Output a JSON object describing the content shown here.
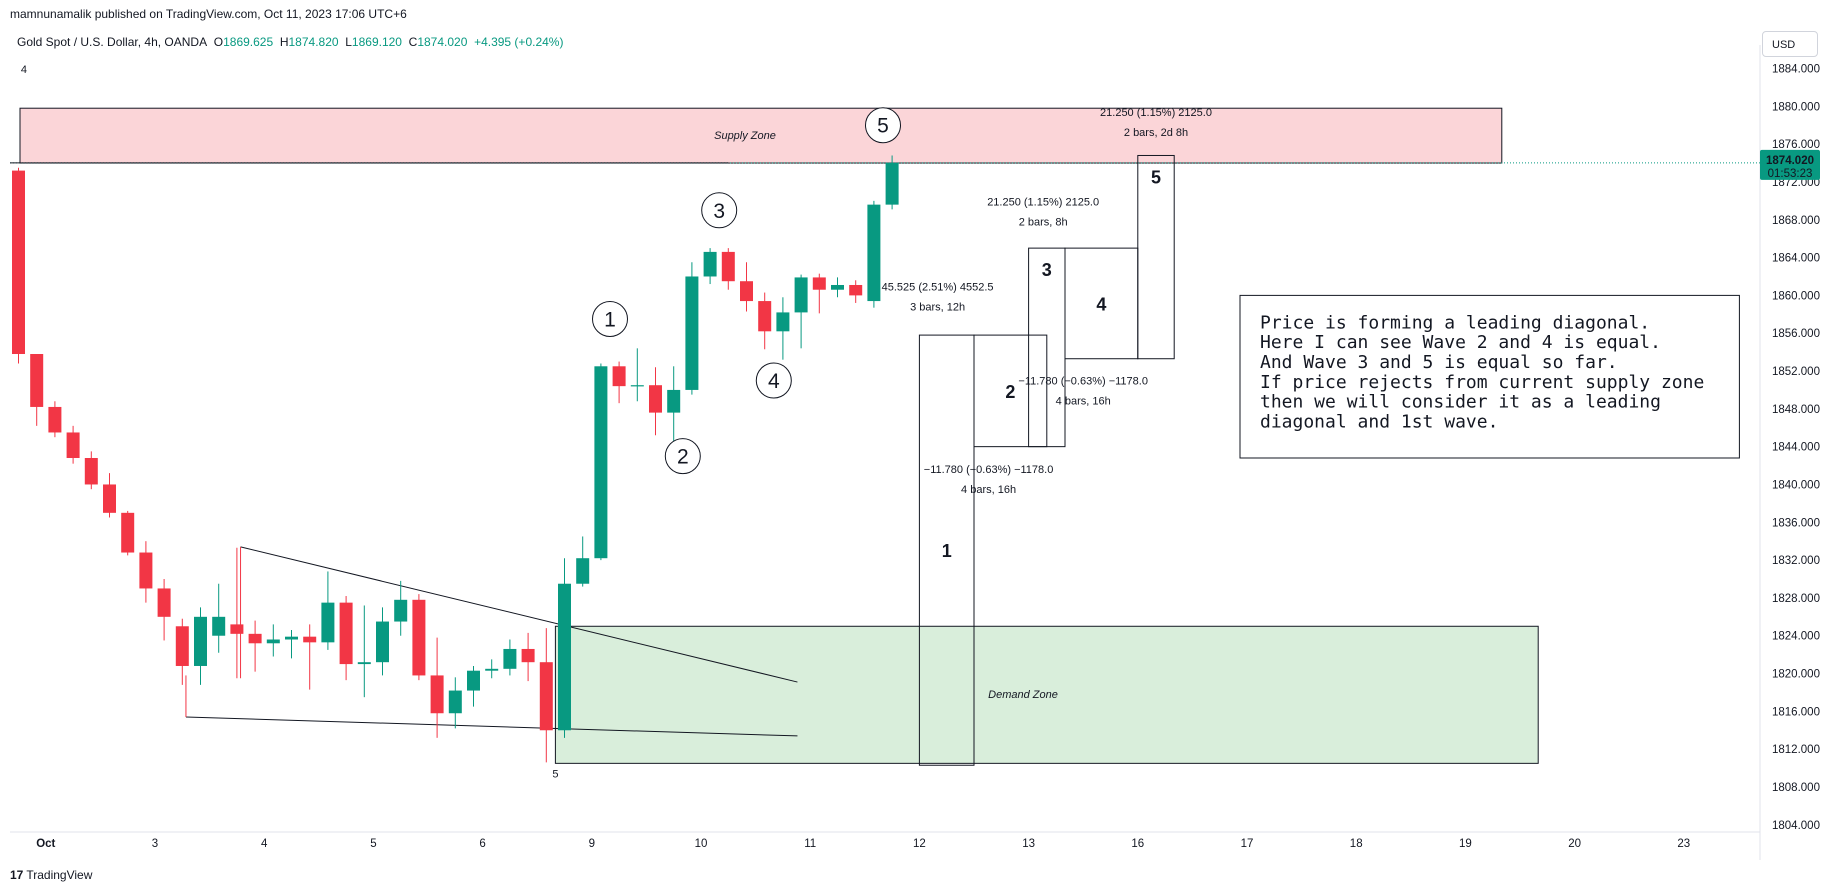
{
  "header": {
    "publisher": "mamnunamalik published on TradingView.com, Oct 11, 2023 17:06 UTC+6",
    "symbol": "Gold Spot / U.S. Dollar, 4h, OANDA",
    "open_label": "O",
    "open": "1869.625",
    "high_label": "H",
    "high": "1874.820",
    "low_label": "L",
    "low": "1869.120",
    "close_label": "C",
    "close": "1874.020",
    "change": "+4.395 (+0.24%)"
  },
  "currency": "USD",
  "footer": {
    "logo": "TradingView"
  },
  "colors": {
    "up": "#089981",
    "down": "#f23645",
    "supply": "#fbd5d8",
    "demand": "#d9eedb",
    "price_tag": "#089981"
  },
  "chart_data": {
    "type": "candlestick",
    "title": "Gold Spot / U.S. Dollar, 4h, OANDA",
    "ylim": [
      1802,
      1886
    ],
    "y_ticks": [
      1804,
      1808,
      1812,
      1816,
      1820,
      1824,
      1828,
      1832,
      1836,
      1840,
      1844,
      1848,
      1852,
      1856,
      1860,
      1864,
      1868,
      1872,
      1876,
      1880,
      1884
    ],
    "y_tick_labels": [
      "1804.000",
      "1808.000",
      "1812.000",
      "1816.000",
      "1820.000",
      "1824.000",
      "1828.000",
      "1832.000",
      "1836.000",
      "1840.000",
      "1844.000",
      "1848.000",
      "1852.000",
      "1856.000",
      "1860.000",
      "1864.000",
      "1868.000",
      "1872.000",
      "1876.000",
      "1880.000",
      "1884.000"
    ],
    "x_ticks": [
      {
        "label": "Oct",
        "bar": 1.5,
        "bold": true
      },
      {
        "label": "3",
        "bar": 7.5
      },
      {
        "label": "4",
        "bar": 13.5
      },
      {
        "label": "5",
        "bar": 19.5
      },
      {
        "label": "6",
        "bar": 25.5
      },
      {
        "label": "9",
        "bar": 31.5
      },
      {
        "label": "10",
        "bar": 37.5
      },
      {
        "label": "11",
        "bar": 43.5
      },
      {
        "label": "12",
        "bar": 49.5
      },
      {
        "label": "13",
        "bar": 55.5
      },
      {
        "label": "16",
        "bar": 61.5
      },
      {
        "label": "17",
        "bar": 67.5
      },
      {
        "label": "18",
        "bar": 73.5
      },
      {
        "label": "19",
        "bar": 79.5
      },
      {
        "label": "20",
        "bar": 85.5
      },
      {
        "label": "23",
        "bar": 91.5
      }
    ],
    "candles": [
      {
        "o": 1873.2,
        "h": 1873.5,
        "l": 1852.8,
        "c": 1853.8
      },
      {
        "o": 1853.8,
        "h": 1853.8,
        "l": 1846.2,
        "c": 1848.2
      },
      {
        "o": 1848.2,
        "h": 1848.8,
        "l": 1845.0,
        "c": 1845.5
      },
      {
        "o": 1845.5,
        "h": 1846.2,
        "l": 1842.2,
        "c": 1842.8
      },
      {
        "o": 1842.8,
        "h": 1843.5,
        "l": 1839.5,
        "c": 1840.0
      },
      {
        "o": 1840.0,
        "h": 1841.2,
        "l": 1836.5,
        "c": 1837.0
      },
      {
        "o": 1837.0,
        "h": 1837.2,
        "l": 1832.5,
        "c": 1832.8
      },
      {
        "o": 1832.8,
        "h": 1834.0,
        "l": 1827.5,
        "c": 1829.0
      },
      {
        "o": 1829.0,
        "h": 1830.0,
        "l": 1823.5,
        "c": 1826.0
      },
      {
        "o": 1825.0,
        "h": 1825.8,
        "l": 1818.8,
        "c": 1820.8
      },
      {
        "o": 1820.8,
        "h": 1827.0,
        "l": 1818.8,
        "c": 1826.0
      },
      {
        "o": 1824.0,
        "h": 1829.5,
        "l": 1822.2,
        "c": 1826.0
      },
      {
        "o": 1825.2,
        "h": 1833.3,
        "l": 1819.5,
        "c": 1824.2
      },
      {
        "o": 1824.2,
        "h": 1825.6,
        "l": 1820.2,
        "c": 1823.2
      },
      {
        "o": 1823.2,
        "h": 1825.2,
        "l": 1821.8,
        "c": 1823.6
      },
      {
        "o": 1823.6,
        "h": 1824.6,
        "l": 1821.6,
        "c": 1823.9
      },
      {
        "o": 1823.9,
        "h": 1825.2,
        "l": 1818.3,
        "c": 1823.3
      },
      {
        "o": 1823.3,
        "h": 1830.8,
        "l": 1822.5,
        "c": 1827.5
      },
      {
        "o": 1827.5,
        "h": 1828.2,
        "l": 1819.3,
        "c": 1821.0
      },
      {
        "o": 1821.0,
        "h": 1827.2,
        "l": 1817.5,
        "c": 1821.2
      },
      {
        "o": 1821.2,
        "h": 1827.0,
        "l": 1819.8,
        "c": 1825.5
      },
      {
        "o": 1825.5,
        "h": 1829.8,
        "l": 1824.0,
        "c": 1827.8
      },
      {
        "o": 1827.8,
        "h": 1828.4,
        "l": 1819.3,
        "c": 1819.8
      },
      {
        "o": 1819.8,
        "h": 1823.8,
        "l": 1813.2,
        "c": 1815.8
      },
      {
        "o": 1815.8,
        "h": 1819.6,
        "l": 1814.2,
        "c": 1818.2
      },
      {
        "o": 1818.2,
        "h": 1820.8,
        "l": 1816.5,
        "c": 1820.3
      },
      {
        "o": 1820.3,
        "h": 1821.5,
        "l": 1819.5,
        "c": 1820.5
      },
      {
        "o": 1820.5,
        "h": 1823.6,
        "l": 1819.8,
        "c": 1822.6
      },
      {
        "o": 1822.6,
        "h": 1824.3,
        "l": 1819.2,
        "c": 1821.2
      },
      {
        "o": 1821.2,
        "h": 1824.8,
        "l": 1810.6,
        "c": 1814.0
      },
      {
        "o": 1814.0,
        "h": 1832.2,
        "l": 1813.2,
        "c": 1829.5
      },
      {
        "o": 1829.5,
        "h": 1834.5,
        "l": 1829.2,
        "c": 1832.2
      },
      {
        "o": 1832.2,
        "h": 1852.8,
        "l": 1832.0,
        "c": 1852.5
      },
      {
        "o": 1852.5,
        "h": 1853.0,
        "l": 1848.6,
        "c": 1850.4
      },
      {
        "o": 1850.4,
        "h": 1854.4,
        "l": 1848.8,
        "c": 1850.5
      },
      {
        "o": 1850.5,
        "h": 1852.4,
        "l": 1845.2,
        "c": 1847.6
      },
      {
        "o": 1847.6,
        "h": 1852.5,
        "l": 1843.9,
        "c": 1850.0
      },
      {
        "o": 1850.0,
        "h": 1863.5,
        "l": 1849.5,
        "c": 1862.0
      },
      {
        "o": 1862.0,
        "h": 1865.0,
        "l": 1861.2,
        "c": 1864.6
      },
      {
        "o": 1864.6,
        "h": 1865.0,
        "l": 1860.6,
        "c": 1861.5
      },
      {
        "o": 1861.5,
        "h": 1863.5,
        "l": 1858.3,
        "c": 1859.4
      },
      {
        "o": 1859.4,
        "h": 1860.3,
        "l": 1854.3,
        "c": 1856.2
      },
      {
        "o": 1856.2,
        "h": 1859.8,
        "l": 1853.2,
        "c": 1858.2
      },
      {
        "o": 1858.2,
        "h": 1862.2,
        "l": 1854.4,
        "c": 1861.9
      },
      {
        "o": 1861.9,
        "h": 1862.3,
        "l": 1858.1,
        "c": 1860.6
      },
      {
        "o": 1860.6,
        "h": 1861.9,
        "l": 1859.8,
        "c": 1861.1
      },
      {
        "o": 1861.1,
        "h": 1861.6,
        "l": 1859.2,
        "c": 1860.0
      },
      {
        "o": 1859.4,
        "h": 1870.0,
        "l": 1858.7,
        "c": 1869.6
      },
      {
        "o": 1869.6,
        "h": 1874.8,
        "l": 1869.1,
        "c": 1874.02
      }
    ],
    "last_price": "1874.020",
    "countdown": "01:53:23",
    "zones": [
      {
        "name": "supply-zone",
        "label": "Supply Zone",
        "bar_start": 0,
        "bar_end": 81.5,
        "y_top": 1879.8,
        "y_bottom": 1874.0
      },
      {
        "name": "demand-zone",
        "label": "Demand Zone",
        "bar_start": 29.5,
        "bar_end": 83.5,
        "y_top": 1825.0,
        "y_bottom": 1810.5
      }
    ],
    "trend_lines": [
      {
        "name": "wedge-upper-line",
        "x1": 12.2,
        "y1": 1833.4,
        "x2": 42.8,
        "y2": 1819.1
      },
      {
        "name": "wedge-lower-line",
        "x1": 9.2,
        "y1": 1815.4,
        "x2": 42.8,
        "y2": 1813.4
      }
    ],
    "wave_labels": [
      {
        "label": "1",
        "bar": 32.5,
        "y": 1857.5
      },
      {
        "label": "2",
        "bar": 36.5,
        "y": 1843.0
      },
      {
        "label": "3",
        "bar": 38.5,
        "y": 1869.0
      },
      {
        "label": "4",
        "bar": 41.5,
        "y": 1851.0
      },
      {
        "label": "5",
        "bar": 47.5,
        "y": 1878.0
      }
    ],
    "measure_boxes": [
      {
        "label": "1",
        "bar_start": 49.5,
        "bar_end": 52.5,
        "y_top": 1855.8,
        "y_bottom": 1810.3
      },
      {
        "label": "2",
        "bar_start": 52.5,
        "bar_end": 56.5,
        "y_top": 1855.8,
        "y_bottom": 1844.0
      },
      {
        "label": "3",
        "bar_start": 55.5,
        "bar_end": 57.5,
        "y_top": 1865.0,
        "y_bottom": 1844.0
      },
      {
        "label": "4",
        "bar_start": 57.5,
        "bar_end": 61.5,
        "y_top": 1865.0,
        "y_bottom": 1853.3
      },
      {
        "label": "5",
        "bar_start": 61.5,
        "bar_end": 63.5,
        "y_top": 1874.8,
        "y_bottom": 1853.3
      }
    ],
    "measure_labels": [
      {
        "line1": "45.525 (2.51%) 4552.5",
        "line2": "3 bars, 12h",
        "bar": 50.5,
        "y": 1860.5
      },
      {
        "line1": "21.250 (1.15%) 2125.0",
        "line2": "2 bars, 8h",
        "bar": 56.3,
        "y": 1869.5
      },
      {
        "line1": "21.250 (1.15%) 2125.0",
        "line2": "2 bars, 2d 8h",
        "bar": 62.5,
        "y": 1879.0
      },
      {
        "line1": "−11.780 (−0.63%) −1178.0",
        "line2": "4 bars, 16h",
        "bar": 53.3,
        "y": 1841.2
      },
      {
        "line1": "−11.780 (−0.63%) −1178.0",
        "line2": "4 bars, 16h",
        "bar": 58.5,
        "y": 1850.6
      }
    ],
    "bar_markers": [
      {
        "label": "4",
        "bar": 0.3,
        "y": 1883.5
      },
      {
        "label": "5",
        "bar": 29.5,
        "y": 1809.0
      }
    ],
    "note": {
      "bar_start": 67.5,
      "bar_end": 94.5,
      "y_top": 1860.0,
      "y_bottom": 1842.8,
      "lines": [
        "Price is forming a leading diagonal.",
        "Here I can see Wave 2 and 4 is equal.",
        "And Wave 3 and 5 is equal so far.",
        "If price rejects from current supply zone",
        "then we will consider it as a leading",
        "diagonal and 1st wave."
      ]
    }
  }
}
